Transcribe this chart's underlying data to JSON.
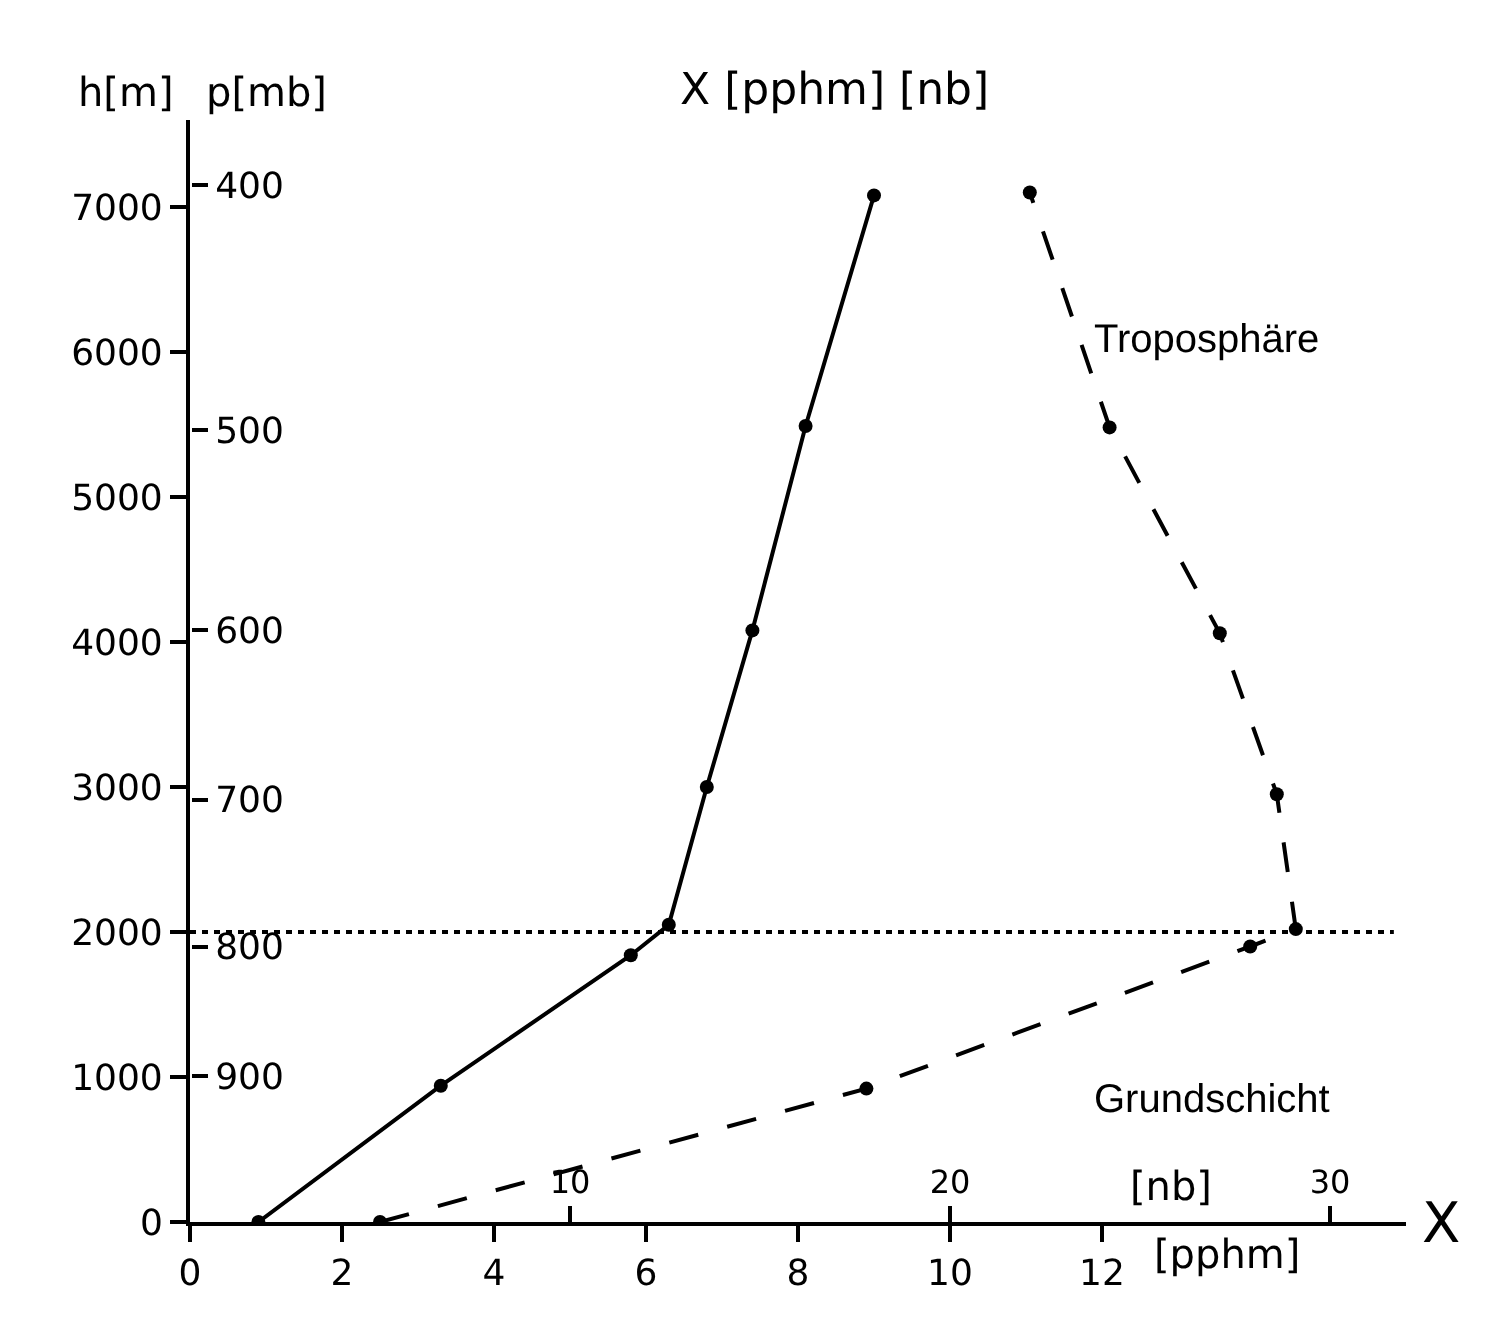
{
  "chart_data": {
    "type": "line",
    "title": "X [pphm] [nb]",
    "xlabel": "[pphm]",
    "x2label": "[nb]",
    "ylabel": "h[m]",
    "y2label": "p[mb]",
    "annotations": [
      "X",
      "Troposphäre",
      "Grundschicht"
    ],
    "xlim": [
      0,
      16
    ],
    "xticks": [
      0,
      2,
      4,
      6,
      8,
      10,
      12
    ],
    "x2lim": [
      0,
      32
    ],
    "x2ticks": [
      10,
      20,
      30
    ],
    "ylim": [
      0,
      7600
    ],
    "yticks": [
      0,
      1000,
      2000,
      3000,
      4000,
      5000,
      6000,
      7000
    ],
    "log": "y2",
    "y2lim": [
      1028,
      377
    ],
    "y2ticks": [
      900,
      800,
      700,
      600,
      500,
      400
    ],
    "series": [
      {
        "color": "#000000",
        "x": [
          0.9,
          3.3,
          5.8,
          6.3,
          6.8,
          7.4,
          8.1,
          9.0
        ],
        "values": [
          0,
          940,
          1840,
          2050,
          3000,
          4080,
          5490,
          7080
        ],
        "line_style": "solid"
      },
      {
        "color": "#000000",
        "axis": "x2",
        "x": [
          5,
          17.8,
          27.9,
          29.1,
          28.6,
          27.1,
          24.2,
          22.1
        ],
        "values": [
          0,
          920,
          1900,
          2020,
          2950,
          4060,
          5480,
          7100
        ],
        "line_style": "dashed"
      }
    ],
    "ref_lines": [
      {
        "axis": "y",
        "value": 2000,
        "line_style": "dotted",
        "color": "#000000"
      }
    ],
    "marker": "circle"
  }
}
